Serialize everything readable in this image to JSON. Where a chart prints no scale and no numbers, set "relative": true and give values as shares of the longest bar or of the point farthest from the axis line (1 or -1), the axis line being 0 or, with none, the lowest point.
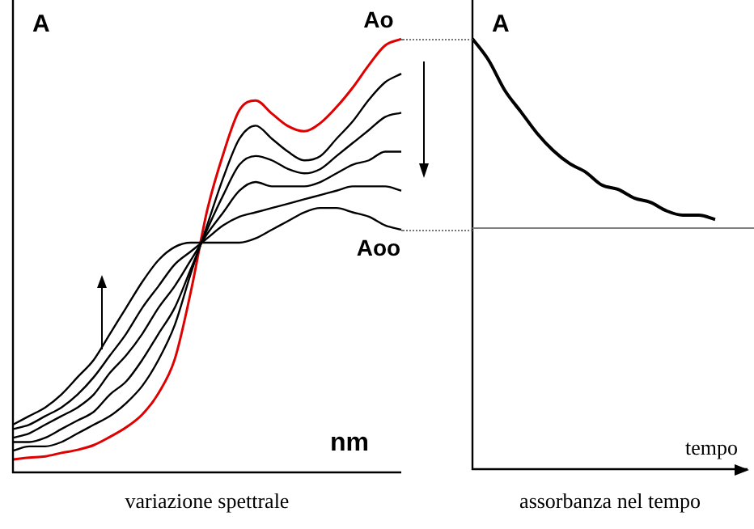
{
  "chart_data": [
    {
      "type": "line",
      "relative": true,
      "title": "variazione spettrale",
      "xlabel": "nm",
      "ylabel": "A",
      "categories": [
        null,
        null,
        null,
        null,
        null,
        null,
        null,
        null,
        null,
        null,
        null,
        null,
        null,
        null,
        null,
        null,
        null,
        null,
        null,
        null,
        null,
        null,
        null,
        null,
        null
      ],
      "series": [
        {
          "color": "#000000",
          "values": [
            0.05,
            0.06,
            0.06,
            0.07,
            0.09,
            0.11,
            0.13,
            0.16,
            0.2,
            0.26,
            0.34,
            0.46,
            0.57,
            0.68,
            0.77,
            0.8,
            0.77,
            0.74,
            0.72,
            0.73,
            0.77,
            0.81,
            0.86,
            0.9,
            0.92
          ]
        },
        {
          "color": "#000000",
          "values": [
            0.07,
            0.07,
            0.08,
            0.1,
            0.12,
            0.14,
            0.18,
            0.21,
            0.26,
            0.32,
            0.38,
            0.47,
            0.56,
            0.64,
            0.71,
            0.73,
            0.72,
            0.7,
            0.69,
            0.7,
            0.73,
            0.76,
            0.79,
            0.82,
            0.83
          ]
        },
        {
          "color": "#000000",
          "values": [
            0.08,
            0.09,
            0.11,
            0.13,
            0.15,
            0.18,
            0.23,
            0.27,
            0.32,
            0.38,
            0.43,
            0.49,
            0.55,
            0.6,
            0.65,
            0.67,
            0.66,
            0.66,
            0.66,
            0.67,
            0.69,
            0.71,
            0.72,
            0.74,
            0.74
          ]
        },
        {
          "color": "#000000",
          "values": [
            0.1,
            0.11,
            0.13,
            0.15,
            0.18,
            0.22,
            0.27,
            0.32,
            0.38,
            0.43,
            0.48,
            0.51,
            0.54,
            0.57,
            0.59,
            0.6,
            0.61,
            0.62,
            0.63,
            0.64,
            0.65,
            0.66,
            0.66,
            0.66,
            0.65
          ]
        },
        {
          "color": "#000000",
          "values": [
            0.11,
            0.13,
            0.15,
            0.18,
            0.22,
            0.26,
            0.32,
            0.38,
            0.44,
            0.49,
            0.52,
            0.53,
            0.53,
            0.53,
            0.53,
            0.54,
            0.56,
            0.58,
            0.6,
            0.61,
            0.61,
            0.6,
            0.59,
            0.57,
            0.56
          ]
        },
        {
          "color": "#e00000",
          "values": [
            0.03,
            0.034,
            0.037,
            0.045,
            0.052,
            0.063,
            0.082,
            0.104,
            0.134,
            0.183,
            0.261,
            0.418,
            0.604,
            0.735,
            0.836,
            0.858,
            0.828,
            0.799,
            0.787,
            0.806,
            0.843,
            0.888,
            0.94,
            0.985,
            1.0
          ]
        }
      ],
      "annotations": [
        {
          "text": "Ao",
          "y": 1.0
        },
        {
          "text": "Aoo",
          "y": 0.56
        }
      ]
    },
    {
      "type": "line",
      "relative": true,
      "title": "assorbanza nel tempo",
      "xlabel": "tempo",
      "ylabel": "A",
      "categories": [
        null,
        null,
        null,
        null,
        null,
        null,
        null,
        null,
        null,
        null,
        null,
        null,
        null,
        null,
        null,
        null,
        null,
        null
      ],
      "series": [
        {
          "color": "#000000",
          "values": [
            1.0,
            0.95,
            0.88,
            0.83,
            0.78,
            0.74,
            0.71,
            0.69,
            0.66,
            0.65,
            0.63,
            0.62,
            0.6,
            0.59,
            0.59,
            0.58,
            null,
            null
          ]
        }
      ],
      "ref_lines": [
        {
          "axis": "y",
          "value": 0.56,
          "color": "#808080"
        }
      ]
    }
  ]
}
